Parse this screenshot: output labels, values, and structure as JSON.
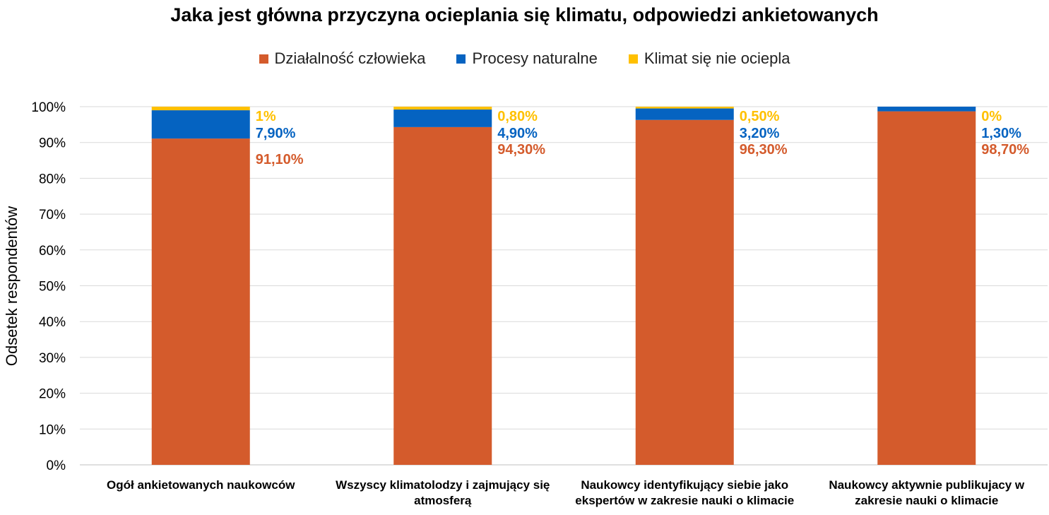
{
  "chart_data": {
    "type": "bar",
    "stacked": true,
    "title": "Jaka jest główna przyczyna ocieplania się klimatu, odpowiedzi ankietowanych",
    "ylabel": "Odsetek respondentów",
    "xlabel": "",
    "ylim": [
      0,
      100
    ],
    "yticks": [
      "0%",
      "10%",
      "20%",
      "30%",
      "40%",
      "50%",
      "60%",
      "70%",
      "80%",
      "90%",
      "100%"
    ],
    "grid": true,
    "legend_position": "top",
    "categories": [
      "Ogół ankietowanych naukowców",
      "Wszyscy klimatolodzy i zajmujący się atmosferą",
      "Naukowcy identyfikujący siebie jako ekspertów w zakresie nauki o klimacie",
      "Naukowcy aktywnie publikujacy w zakresie nauki o klimacie"
    ],
    "series": [
      {
        "name": "Działalność człowieka",
        "color": "#d45b2c",
        "values": [
          91.1,
          94.3,
          96.3,
          98.7
        ],
        "labels": [
          "91,10%",
          "94,30%",
          "96,30%",
          "98,70%"
        ]
      },
      {
        "name": "Procesy naturalne",
        "color": "#0563c1",
        "values": [
          7.9,
          4.9,
          3.2,
          1.3
        ],
        "labels": [
          "7,90%",
          "4,90%",
          "3,20%",
          "1,30%"
        ]
      },
      {
        "name": "Klimat się nie ociepla",
        "color": "#ffc000",
        "values": [
          1,
          0.8,
          0.5,
          0
        ],
        "labels": [
          "1%",
          "0,80%",
          "0,50%",
          "0%"
        ]
      }
    ]
  }
}
